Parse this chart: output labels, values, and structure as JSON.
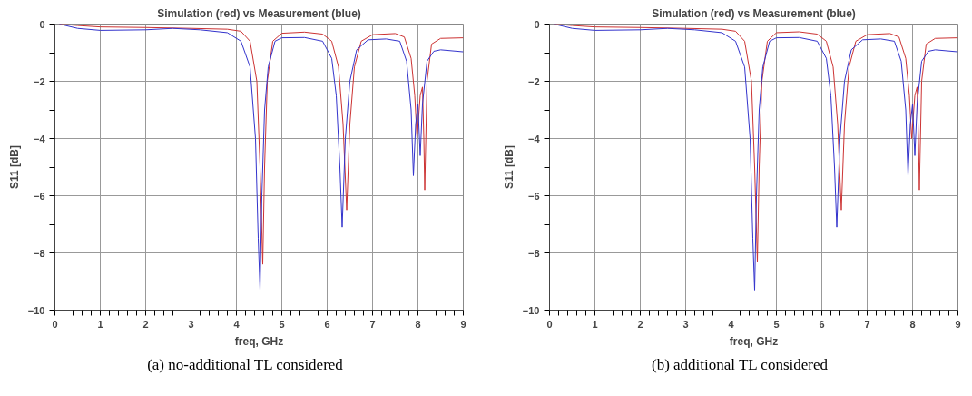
{
  "chart_data": [
    {
      "type": "line",
      "title": "Simulation (red) vs Measurement (blue)",
      "xlabel": "freq, GHz",
      "ylabel": "S11 [dB]",
      "annotations": [
        "(a) no-additional TL considered"
      ],
      "xlim": [
        0,
        9
      ],
      "ylim": [
        -10,
        0
      ],
      "xticks": [
        0,
        1,
        2,
        3,
        4,
        5,
        6,
        7,
        8,
        9,
        {
          "value": 0.2,
          "label": null
        },
        {
          "value": 0.4,
          "label": null
        },
        {
          "value": 0.6,
          "label": null
        },
        {
          "value": 0.8,
          "label": null
        },
        {
          "value": 1.2,
          "label": null
        },
        {
          "value": 1.4,
          "label": null
        },
        {
          "value": 1.6,
          "label": null
        },
        {
          "value": 1.8,
          "label": null
        },
        {
          "value": 2.2,
          "label": null
        },
        {
          "value": 2.4,
          "label": null
        },
        {
          "value": 2.6,
          "label": null
        },
        {
          "value": 2.8,
          "label": null
        },
        {
          "value": 3.2,
          "label": null
        },
        {
          "value": 3.4,
          "label": null
        },
        {
          "value": 3.6,
          "label": null
        },
        {
          "value": 3.8,
          "label": null
        },
        {
          "value": 4.2,
          "label": null
        },
        {
          "value": 4.4,
          "label": null
        },
        {
          "value": 4.6,
          "label": null
        },
        {
          "value": 4.8,
          "label": null
        },
        {
          "value": 5.2,
          "label": null
        },
        {
          "value": 5.4,
          "label": null
        },
        {
          "value": 5.6,
          "label": null
        },
        {
          "value": 5.8,
          "label": null
        },
        {
          "value": 6.2,
          "label": null
        },
        {
          "value": 6.4,
          "label": null
        },
        {
          "value": 6.6,
          "label": null
        },
        {
          "value": 6.8,
          "label": null
        },
        {
          "value": 7.2,
          "label": null
        },
        {
          "value": 7.4,
          "label": null
        },
        {
          "value": 7.6,
          "label": null
        },
        {
          "value": 7.8,
          "label": null
        },
        {
          "value": 8.2,
          "label": null
        },
        {
          "value": 8.4,
          "label": null
        },
        {
          "value": 8.6,
          "label": null
        },
        {
          "value": 8.8,
          "label": null
        }
      ],
      "yticks": [
        0,
        -2,
        -4,
        -6,
        -8,
        -10,
        {
          "value": -1,
          "label": null
        },
        {
          "value": -3,
          "label": null
        },
        {
          "value": -5,
          "label": null
        },
        {
          "value": -7,
          "label": null
        },
        {
          "value": -9,
          "label": null
        }
      ],
      "grid": true,
      "series": [
        {
          "color": "#cc3333",
          "x": [
            0.1,
            0.5,
            1,
            2,
            3,
            3.8,
            4.1,
            4.3,
            4.45,
            4.52,
            4.58,
            4.62,
            4.68,
            4.8,
            5.0,
            5.5,
            5.9,
            6.1,
            6.25,
            6.35,
            6.43,
            6.5,
            6.6,
            6.75,
            7.0,
            7.5,
            7.7,
            7.85,
            7.93,
            7.98,
            8.05,
            8.1,
            8.13,
            8.15,
            8.2,
            8.3,
            8.5,
            9
          ],
          "values": [
            0,
            -0.05,
            -0.1,
            -0.12,
            -0.15,
            -0.18,
            -0.25,
            -0.6,
            -2,
            -5,
            -8.4,
            -5,
            -2,
            -0.6,
            -0.32,
            -0.28,
            -0.35,
            -0.6,
            -1.5,
            -3.5,
            -6.5,
            -3.5,
            -1.5,
            -0.6,
            -0.37,
            -0.33,
            -0.45,
            -1.2,
            -2.5,
            -4.0,
            -2.5,
            -2.2,
            -4,
            -5.8,
            -2,
            -0.7,
            -0.5,
            -0.48
          ]
        },
        {
          "color": "#3333cc",
          "x": [
            0.1,
            0.5,
            1,
            2,
            2.6,
            3.2,
            3.8,
            4.1,
            4.3,
            4.42,
            4.48,
            4.52,
            4.56,
            4.62,
            4.7,
            4.85,
            5.0,
            5.5,
            5.9,
            6.1,
            6.2,
            6.28,
            6.33,
            6.4,
            6.5,
            6.65,
            6.9,
            7.3,
            7.6,
            7.75,
            7.85,
            7.9,
            7.95,
            8.0,
            8.05,
            8.1,
            8.2,
            8.35,
            8.5,
            9
          ],
          "values": [
            0,
            -0.15,
            -0.22,
            -0.2,
            -0.15,
            -0.2,
            -0.3,
            -0.6,
            -1.5,
            -4,
            -7.5,
            -9.3,
            -6,
            -3,
            -1.5,
            -0.6,
            -0.48,
            -0.47,
            -0.6,
            -1.2,
            -2.5,
            -5,
            -7.1,
            -4,
            -2,
            -0.9,
            -0.55,
            -0.52,
            -0.6,
            -1.3,
            -3,
            -5.3,
            -3.5,
            -2.8,
            -4.6,
            -2.8,
            -1.3,
            -0.95,
            -0.9,
            -0.97
          ]
        }
      ]
    },
    {
      "type": "line",
      "title": "Simulation (red) vs Measurement (blue)",
      "xlabel": "freq, GHz",
      "ylabel": "S11 [dB]",
      "annotations": [
        "(b) additional TL considered"
      ],
      "xlim": [
        0,
        9
      ],
      "ylim": [
        -10,
        0
      ],
      "xticks": [
        0,
        1,
        2,
        3,
        4,
        5,
        6,
        7,
        8,
        9,
        {
          "value": 0.2,
          "label": null
        },
        {
          "value": 0.4,
          "label": null
        },
        {
          "value": 0.6,
          "label": null
        },
        {
          "value": 0.8,
          "label": null
        },
        {
          "value": 1.2,
          "label": null
        },
        {
          "value": 1.4,
          "label": null
        },
        {
          "value": 1.6,
          "label": null
        },
        {
          "value": 1.8,
          "label": null
        },
        {
          "value": 2.2,
          "label": null
        },
        {
          "value": 2.4,
          "label": null
        },
        {
          "value": 2.6,
          "label": null
        },
        {
          "value": 2.8,
          "label": null
        },
        {
          "value": 3.2,
          "label": null
        },
        {
          "value": 3.4,
          "label": null
        },
        {
          "value": 3.6,
          "label": null
        },
        {
          "value": 3.8,
          "label": null
        },
        {
          "value": 4.2,
          "label": null
        },
        {
          "value": 4.4,
          "label": null
        },
        {
          "value": 4.6,
          "label": null
        },
        {
          "value": 4.8,
          "label": null
        },
        {
          "value": 5.2,
          "label": null
        },
        {
          "value": 5.4,
          "label": null
        },
        {
          "value": 5.6,
          "label": null
        },
        {
          "value": 5.8,
          "label": null
        },
        {
          "value": 6.2,
          "label": null
        },
        {
          "value": 6.4,
          "label": null
        },
        {
          "value": 6.6,
          "label": null
        },
        {
          "value": 6.8,
          "label": null
        },
        {
          "value": 7.2,
          "label": null
        },
        {
          "value": 7.4,
          "label": null
        },
        {
          "value": 7.6,
          "label": null
        },
        {
          "value": 7.8,
          "label": null
        },
        {
          "value": 8.2,
          "label": null
        },
        {
          "value": 8.4,
          "label": null
        },
        {
          "value": 8.6,
          "label": null
        },
        {
          "value": 8.8,
          "label": null
        }
      ],
      "yticks": [
        0,
        -2,
        -4,
        -6,
        -8,
        -10,
        {
          "value": -1,
          "label": null
        },
        {
          "value": -3,
          "label": null
        },
        {
          "value": -5,
          "label": null
        },
        {
          "value": -7,
          "label": null
        },
        {
          "value": -9,
          "label": null
        }
      ],
      "grid": true,
      "series": [
        {
          "color": "#cc3333",
          "x": [
            0.1,
            0.5,
            1,
            2,
            3,
            3.8,
            4.1,
            4.3,
            4.45,
            4.52,
            4.58,
            4.62,
            4.68,
            4.8,
            5.0,
            5.5,
            5.9,
            6.1,
            6.25,
            6.35,
            6.43,
            6.5,
            6.6,
            6.75,
            7.0,
            7.5,
            7.7,
            7.85,
            7.93,
            7.98,
            8.05,
            8.1,
            8.13,
            8.15,
            8.2,
            8.3,
            8.5,
            9
          ],
          "values": [
            0,
            -0.05,
            -0.1,
            -0.12,
            -0.15,
            -0.18,
            -0.25,
            -0.6,
            -2,
            -5,
            -8.3,
            -5,
            -2,
            -0.6,
            -0.3,
            -0.27,
            -0.35,
            -0.6,
            -1.5,
            -3.5,
            -6.5,
            -3.5,
            -1.5,
            -0.6,
            -0.37,
            -0.33,
            -0.45,
            -1.2,
            -2.5,
            -4.0,
            -2.5,
            -2.2,
            -4,
            -5.8,
            -2,
            -0.7,
            -0.5,
            -0.48
          ]
        },
        {
          "color": "#3333cc",
          "x": [
            0.1,
            0.5,
            1,
            2,
            2.6,
            3.2,
            3.8,
            4.1,
            4.3,
            4.42,
            4.48,
            4.52,
            4.56,
            4.62,
            4.7,
            4.85,
            5.0,
            5.5,
            5.9,
            6.1,
            6.2,
            6.28,
            6.33,
            6.4,
            6.5,
            6.65,
            6.9,
            7.3,
            7.6,
            7.75,
            7.85,
            7.9,
            7.95,
            8.0,
            8.05,
            8.1,
            8.2,
            8.35,
            8.5,
            9
          ],
          "values": [
            0,
            -0.15,
            -0.22,
            -0.2,
            -0.15,
            -0.2,
            -0.3,
            -0.6,
            -1.5,
            -4,
            -7.5,
            -9.3,
            -6,
            -3,
            -1.5,
            -0.6,
            -0.48,
            -0.47,
            -0.6,
            -1.2,
            -2.5,
            -5,
            -7.1,
            -4,
            -2,
            -0.9,
            -0.55,
            -0.52,
            -0.6,
            -1.3,
            -3,
            -5.3,
            -3.5,
            -2.8,
            -4.6,
            -2.8,
            -1.3,
            -0.95,
            -0.9,
            -0.97
          ]
        }
      ]
    }
  ]
}
